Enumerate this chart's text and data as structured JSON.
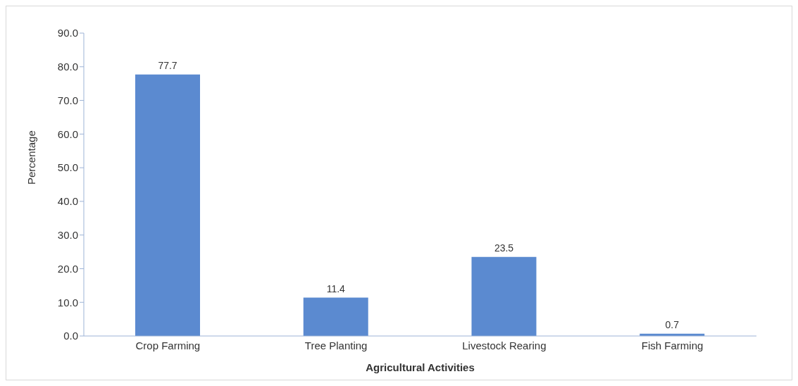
{
  "chart_data": {
    "type": "bar",
    "xlabel": "Agricultural Activities",
    "ylabel": "Percentage",
    "categories": [
      "Crop Farming",
      "Tree Planting",
      "Livestock Rearing",
      "Fish Farming"
    ],
    "values": [
      77.7,
      11.4,
      23.5,
      0.7
    ],
    "color": "#5b8ad0",
    "ylim": [
      0,
      90
    ],
    "yticks": [
      {
        "value": 0,
        "label": "0.0"
      },
      {
        "value": 10,
        "label": "10.0"
      },
      {
        "value": 20,
        "label": "20.0"
      },
      {
        "value": 30,
        "label": "30.0"
      },
      {
        "value": 40,
        "label": "40.0"
      },
      {
        "value": 50,
        "label": "50.0"
      },
      {
        "value": 60,
        "label": "60.0"
      },
      {
        "value": 70,
        "label": "70.0"
      },
      {
        "value": 80,
        "label": "80.0"
      },
      {
        "value": 90,
        "label": "90.0"
      }
    ],
    "data_labels": true,
    "grid": false,
    "legend": false
  }
}
